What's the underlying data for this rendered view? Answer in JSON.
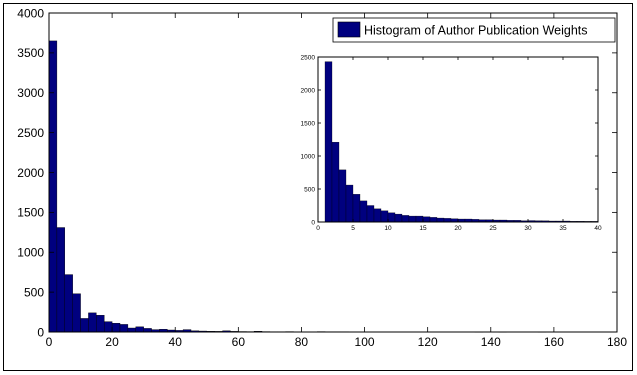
{
  "chart_data": [
    {
      "type": "bar",
      "role": "main",
      "bin_width": 2.5,
      "xlim": [
        0,
        180
      ],
      "ylim": [
        0,
        4000
      ],
      "x_ticks": [
        0,
        20,
        40,
        60,
        80,
        100,
        120,
        140,
        160,
        180
      ],
      "y_ticks": [
        0,
        500,
        1000,
        1500,
        2000,
        2500,
        3000,
        3500,
        4000
      ],
      "legend_label": "Histogram of Author Publication Weights",
      "legend_position": "top-right",
      "bar_color": "#00007F",
      "x": [
        1.25,
        3.75,
        6.25,
        8.75,
        11.25,
        13.75,
        16.25,
        18.75,
        21.25,
        23.75,
        26.25,
        28.75,
        31.25,
        33.75,
        36.25,
        38.75,
        41.25,
        43.75,
        46.25,
        48.75,
        51.25,
        53.75,
        56.25,
        58.75,
        61.25,
        63.75,
        66.25,
        68.75,
        71.25,
        73.75,
        76.25,
        78.75,
        81.25,
        83.75,
        86.25,
        88.75,
        91.25,
        93.75,
        96.25,
        98.75,
        101.25,
        106.25,
        111.25,
        116.25,
        121.25,
        126.25,
        131.25,
        136.25,
        143.75,
        156.25,
        173.75
      ],
      "values": [
        3650,
        1310,
        720,
        480,
        170,
        240,
        210,
        130,
        110,
        95,
        50,
        65,
        45,
        30,
        35,
        25,
        20,
        30,
        15,
        12,
        10,
        8,
        15,
        8,
        6,
        5,
        10,
        5,
        4,
        4,
        5,
        3,
        3,
        3,
        5,
        4,
        4,
        4,
        3,
        3,
        3,
        2,
        2,
        2,
        2,
        2,
        2,
        1,
        1,
        1,
        2
      ]
    },
    {
      "type": "bar",
      "role": "inset",
      "bin_width": 1,
      "xlim": [
        0,
        40
      ],
      "ylim": [
        0,
        2500
      ],
      "x_ticks": [
        0,
        5,
        10,
        15,
        20,
        25,
        30,
        35,
        40
      ],
      "y_ticks": [
        0,
        500,
        1000,
        1500,
        2000,
        2500
      ],
      "bar_color": "#00007F",
      "x": [
        1.5,
        2.5,
        3.5,
        4.5,
        5.5,
        6.5,
        7.5,
        8.5,
        9.5,
        10.5,
        11.5,
        12.5,
        13.5,
        14.5,
        15.5,
        16.5,
        17.5,
        18.5,
        19.5,
        20.5,
        21.5,
        22.5,
        23.5,
        24.5,
        25.5,
        26.5,
        27.5,
        28.5,
        29.5,
        30.5,
        31.5,
        32.5,
        33.5,
        34.5,
        35.5,
        36.5,
        37.5,
        38.5,
        39.5
      ],
      "values": [
        2430,
        1210,
        790,
        560,
        420,
        320,
        250,
        200,
        170,
        140,
        120,
        100,
        90,
        90,
        80,
        70,
        60,
        55,
        50,
        45,
        45,
        40,
        35,
        35,
        30,
        30,
        25,
        25,
        20,
        22,
        20,
        18,
        15,
        15,
        15,
        12,
        12,
        10,
        10
      ]
    }
  ]
}
